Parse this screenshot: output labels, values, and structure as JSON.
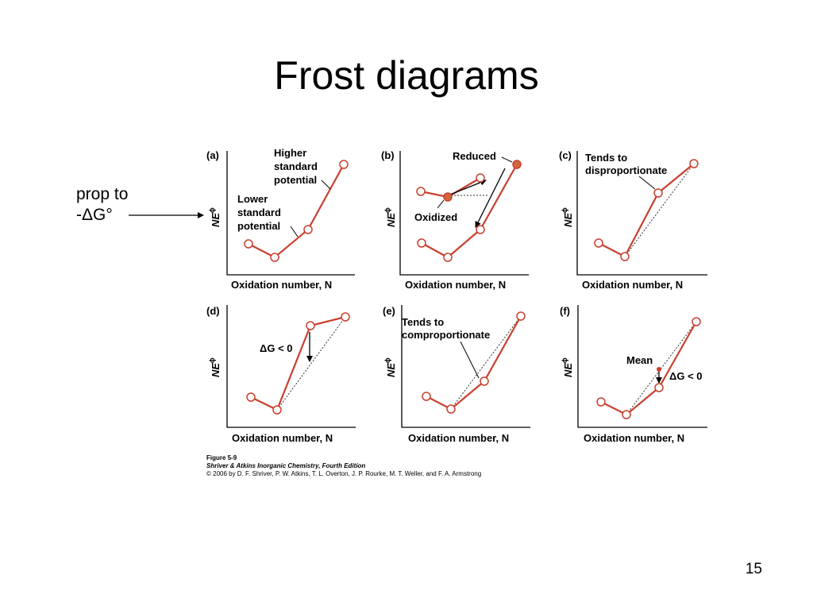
{
  "slide": {
    "title": "Frost diagrams",
    "side_label_line1": "prop to",
    "side_label_line2": "-ΔG°",
    "slide_number": "15"
  },
  "figure": {
    "caption_line1": "Figure 5-9",
    "caption_line2": "Shriver & Atkins Inorganic Chemistry, Fourth Edition",
    "caption_line3": "© 2006 by D. F. Shriver, P. W. Atkins, T. L. Overton, J. P. Rourke, M. T. Weller, and F. A. Armstrong",
    "xlabel": "Oxidation number, N",
    "ylabel": "NE",
    "ylabel_super": "ϕ",
    "colors": {
      "line": "#c8402e",
      "dotted": "#333333",
      "filled_point": "#d2673e"
    }
  },
  "panels": [
    {
      "id": "a",
      "letter": "(a)",
      "annotations": [
        "Higher",
        "standard",
        "potential",
        "Lower",
        "standard",
        "potential"
      ]
    },
    {
      "id": "b",
      "letter": "(b)",
      "annotations": [
        "Reduced",
        "Oxidized"
      ]
    },
    {
      "id": "c",
      "letter": "(c)",
      "annotations": [
        "Tends to",
        "disproportionate"
      ]
    },
    {
      "id": "d",
      "letter": "(d)",
      "annotations": [
        "ΔG < 0"
      ]
    },
    {
      "id": "e",
      "letter": "(e)",
      "annotations": [
        "Tends to",
        "comproportionate"
      ]
    },
    {
      "id": "f",
      "letter": "(f)",
      "annotations": [
        "Mean",
        "ΔG < 0"
      ]
    }
  ]
}
